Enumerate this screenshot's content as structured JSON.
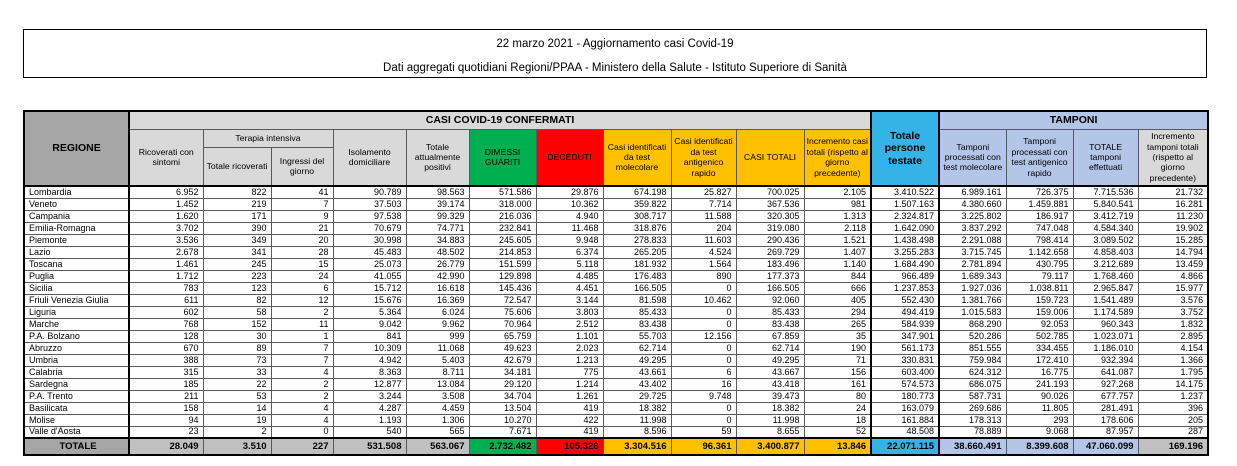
{
  "title": {
    "line1": "22 marzo 2021 - Aggiornamento casi Covid-19",
    "line2": "Dati aggregati quotidiani Regioni/PPAA - Ministero della Salute - Istituto Superiore di Sanità"
  },
  "table": {
    "group_headers": {
      "regione": "REGIONE",
      "casi_confermati": "CASI COVID-19 CONFERMATI",
      "tamponi": "TAMPONI",
      "terapia_intensiva": "Terapia intensiva"
    },
    "columns": [
      "Ricoverati con sintomi",
      "Totale ricoverati",
      "Ingressi del giorno",
      "Isolamento domiciliare",
      "Totale attualmente positivi",
      "DIMESSI GUARITI",
      "DECEDUTI",
      "Casi identificati da test molecolare",
      "Casi identificati da test antigenico rapido",
      "CASI TOTALI",
      "Incremento casi totali (rispetto al giorno precedente)",
      "Totale persone testate",
      "Tamponi processati con test molecolare",
      "Tamponi processati con test antigenico rapido",
      "TOTALE tamponi effettuati",
      "Incremento tamponi totali (rispetto al giorno precedente)"
    ],
    "rows": [
      {
        "region": "Lombardia",
        "values": [
          "6.952",
          "822",
          "41",
          "90.789",
          "98.563",
          "571.586",
          "29.876",
          "674.198",
          "25.827",
          "700.025",
          "2.105",
          "3.410.522",
          "6.989.161",
          "726.375",
          "7.715.536",
          "21.732"
        ]
      },
      {
        "region": "Veneto",
        "values": [
          "1.452",
          "219",
          "7",
          "37.503",
          "39.174",
          "318.000",
          "10.362",
          "359.822",
          "7.714",
          "367.536",
          "981",
          "1.507.163",
          "4.380.660",
          "1.459.881",
          "5.840.541",
          "16.281"
        ]
      },
      {
        "region": "Campania",
        "values": [
          "1.620",
          "171",
          "9",
          "97.538",
          "99.329",
          "216.036",
          "4.940",
          "308.717",
          "11.588",
          "320.305",
          "1.313",
          "2.324.817",
          "3.225.802",
          "186.917",
          "3.412.719",
          "11.230"
        ]
      },
      {
        "region": "Emilia-Romagna",
        "values": [
          "3.702",
          "390",
          "21",
          "70.679",
          "74.771",
          "232.841",
          "11.468",
          "318.876",
          "204",
          "319.080",
          "2.118",
          "1.642.090",
          "3.837.292",
          "747.048",
          "4.584.340",
          "19.902"
        ]
      },
      {
        "region": "Piemonte",
        "values": [
          "3.536",
          "349",
          "20",
          "30.998",
          "34.883",
          "245.605",
          "9.948",
          "278.833",
          "11.603",
          "290.436",
          "1.521",
          "1.438.498",
          "2.291.088",
          "798.414",
          "3.089.502",
          "15.285"
        ]
      },
      {
        "region": "Lazio",
        "values": [
          "2.678",
          "341",
          "28",
          "45.483",
          "48.502",
          "214.853",
          "6.374",
          "265.205",
          "4.524",
          "269.729",
          "1.407",
          "3.255.283",
          "3.715.745",
          "1.142.658",
          "4.858.403",
          "14.794"
        ]
      },
      {
        "region": "Toscana",
        "values": [
          "1.461",
          "245",
          "15",
          "25.073",
          "26.779",
          "151.599",
          "5.118",
          "181.932",
          "1.564",
          "183.496",
          "1.140",
          "1.684.490",
          "2.781.894",
          "430.795",
          "3.212.689",
          "13.459"
        ]
      },
      {
        "region": "Puglia",
        "values": [
          "1.712",
          "223",
          "24",
          "41.055",
          "42.990",
          "129.898",
          "4.485",
          "176.483",
          "890",
          "177.373",
          "844",
          "966.489",
          "1.689.343",
          "79.117",
          "1.768.460",
          "4.866"
        ]
      },
      {
        "region": "Sicilia",
        "values": [
          "783",
          "123",
          "6",
          "15.712",
          "16.618",
          "145.436",
          "4.451",
          "166.505",
          "0",
          "166.505",
          "666",
          "1.237.853",
          "1.927.036",
          "1.038.811",
          "2.965.847",
          "15.977"
        ]
      },
      {
        "region": "Friuli Venezia Giulia",
        "values": [
          "611",
          "82",
          "12",
          "15.676",
          "16.369",
          "72.547",
          "3.144",
          "81.598",
          "10.462",
          "92.060",
          "405",
          "552.430",
          "1.381.766",
          "159.723",
          "1.541.489",
          "3.576"
        ]
      },
      {
        "region": "Liguria",
        "values": [
          "602",
          "58",
          "2",
          "5.364",
          "6.024",
          "75.606",
          "3.803",
          "85.433",
          "0",
          "85.433",
          "294",
          "494.419",
          "1.015.583",
          "159.006",
          "1.174.589",
          "3.752"
        ]
      },
      {
        "region": "Marche",
        "values": [
          "768",
          "152",
          "11",
          "9.042",
          "9.962",
          "70.964",
          "2.512",
          "83.438",
          "0",
          "83.438",
          "265",
          "584.939",
          "868.290",
          "92.053",
          "960.343",
          "1.832"
        ]
      },
      {
        "region": "P.A. Bolzano",
        "values": [
          "128",
          "30",
          "1",
          "841",
          "999",
          "65.759",
          "1.101",
          "55.703",
          "12.156",
          "67.859",
          "35",
          "347.901",
          "520.286",
          "502.785",
          "1.023.071",
          "2.895"
        ]
      },
      {
        "region": "Abruzzo",
        "values": [
          "670",
          "89",
          "7",
          "10.309",
          "11.068",
          "49.623",
          "2.023",
          "62.714",
          "0",
          "62.714",
          "190",
          "561.173",
          "851.555",
          "334.455",
          "1.186.010",
          "4.154"
        ]
      },
      {
        "region": "Umbria",
        "values": [
          "388",
          "73",
          "7",
          "4.942",
          "5.403",
          "42.679",
          "1.213",
          "49.295",
          "0",
          "49.295",
          "71",
          "330.831",
          "759.984",
          "172.410",
          "932.394",
          "1.366"
        ]
      },
      {
        "region": "Calabria",
        "values": [
          "315",
          "33",
          "4",
          "8.363",
          "8.711",
          "34.181",
          "775",
          "43.661",
          "6",
          "43.667",
          "156",
          "603.400",
          "624.312",
          "16.775",
          "641.087",
          "1.795"
        ]
      },
      {
        "region": "Sardegna",
        "values": [
          "185",
          "22",
          "2",
          "12.877",
          "13.084",
          "29.120",
          "1.214",
          "43.402",
          "16",
          "43.418",
          "161",
          "574.573",
          "686.075",
          "241.193",
          "927.268",
          "14.175"
        ]
      },
      {
        "region": "P.A. Trento",
        "values": [
          "211",
          "53",
          "2",
          "3.244",
          "3.508",
          "34.704",
          "1.261",
          "29.725",
          "9.748",
          "39.473",
          "80",
          "180.773",
          "587.731",
          "90.026",
          "677.757",
          "1.237"
        ]
      },
      {
        "region": "Basilicata",
        "values": [
          "158",
          "14",
          "4",
          "4.287",
          "4.459",
          "13.504",
          "419",
          "18.382",
          "0",
          "18.382",
          "24",
          "163.079",
          "269.686",
          "11.805",
          "281.491",
          "396"
        ]
      },
      {
        "region": "Molise",
        "values": [
          "94",
          "19",
          "4",
          "1.193",
          "1.306",
          "10.270",
          "422",
          "11.998",
          "0",
          "11.998",
          "18",
          "161.884",
          "178.313",
          "293",
          "178.606",
          "205"
        ]
      },
      {
        "region": "Valle d'Aosta",
        "values": [
          "23",
          "2",
          "0",
          "540",
          "565",
          "7.671",
          "419",
          "8.596",
          "59",
          "8.655",
          "52",
          "48.508",
          "78.889",
          "9.068",
          "87.957",
          "287"
        ]
      }
    ],
    "total_row": {
      "region": "TOTALE",
      "values": [
        "28.049",
        "3.510",
        "227",
        "531.508",
        "563.067",
        "2.732.482",
        "105.328",
        "3.304.516",
        "96.361",
        "3.400.877",
        "13.846",
        "22.071.115",
        "38.660.491",
        "8.399.608",
        "47.060.099",
        "169.196"
      ]
    }
  },
  "colors": {
    "green": "#00B050",
    "red": "#FF0000",
    "yellow": "#FFC000",
    "cyan": "#33B3E6",
    "light_blue": "#B4C6E7",
    "header_gray": "#A6A6A6",
    "subheader_gray": "#D9D9D9",
    "total_gray": "#C0C0C0"
  }
}
